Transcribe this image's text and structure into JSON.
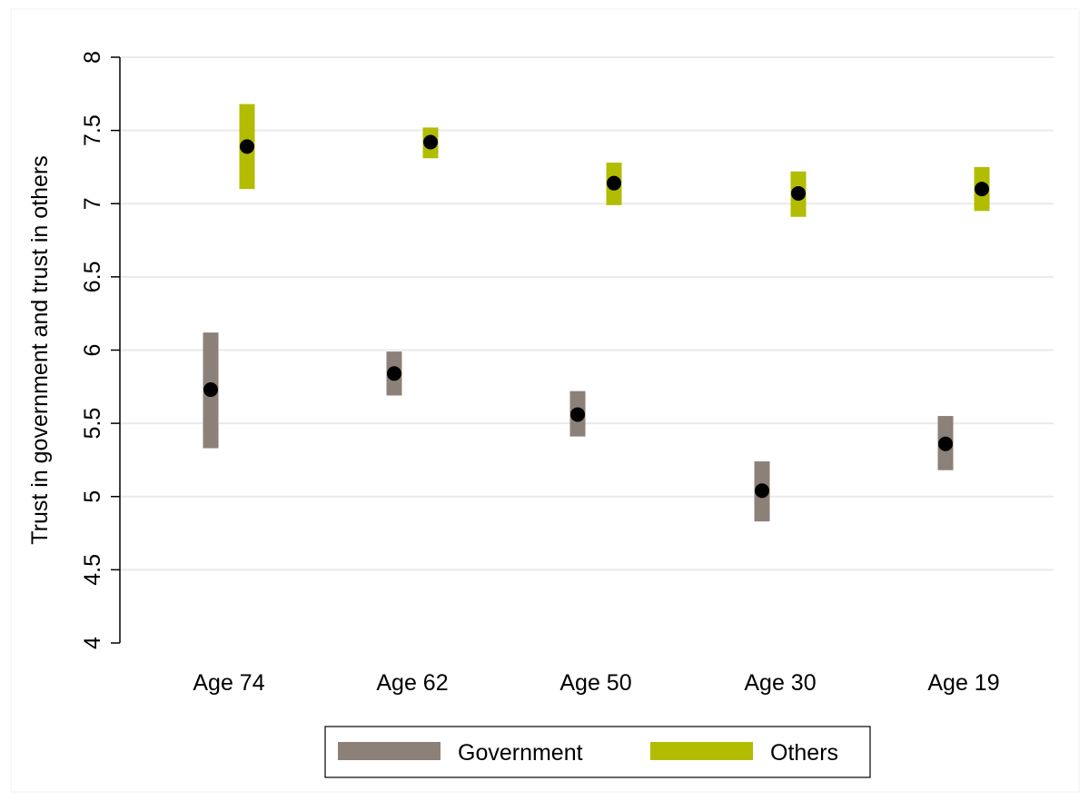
{
  "chart_data": {
    "type": "scatter",
    "title": "",
    "ylabel": "Trust in government and trust in others",
    "xlabel": "",
    "ylim": [
      4,
      8
    ],
    "yticks": [
      4,
      4.5,
      5,
      5.5,
      6,
      6.5,
      7,
      7.5,
      8
    ],
    "ytick_labels": [
      "4",
      "4.5",
      "5",
      "5.5",
      "6",
      "6.5",
      "7",
      "7.5",
      "8"
    ],
    "categories": [
      "Age 74",
      "Age 62",
      "Age 50",
      "Age 30",
      "Age 19"
    ],
    "grid": true,
    "legend_position": "bottom",
    "series": [
      {
        "name": "Government",
        "color": "#8c8179",
        "values": [
          5.73,
          5.84,
          5.56,
          5.04,
          5.36
        ],
        "ci_low": [
          5.33,
          5.69,
          5.41,
          4.83,
          5.18
        ],
        "ci_high": [
          6.12,
          5.99,
          5.72,
          5.24,
          5.55
        ]
      },
      {
        "name": "Others",
        "color": "#b2bc00",
        "values": [
          7.39,
          7.42,
          7.14,
          7.07,
          7.1
        ],
        "ci_low": [
          7.1,
          7.31,
          6.99,
          6.91,
          6.95
        ],
        "ci_high": [
          7.68,
          7.52,
          7.28,
          7.22,
          7.25
        ]
      }
    ],
    "point_color": "#000000"
  }
}
